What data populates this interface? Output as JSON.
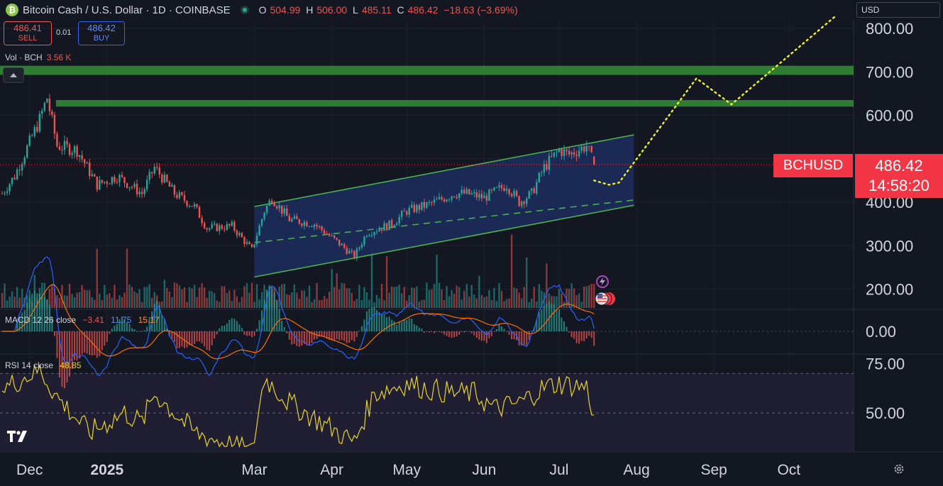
{
  "header": {
    "logo_glyph": "₿",
    "title": "Bitcoin Cash / U.S. Dollar · 1D · COINBASE",
    "ohlc": [
      {
        "key": "O",
        "value": "504.99"
      },
      {
        "key": "H",
        "value": "506.00"
      },
      {
        "key": "L",
        "value": "485.11"
      },
      {
        "key": "C",
        "value": "486.42"
      },
      {
        "key": "",
        "value": "−18.63 (−3.69%)"
      }
    ]
  },
  "trade": {
    "sell_price": "486.41",
    "sell_label": "SELL",
    "spread": "0.01",
    "buy_price": "486.42",
    "buy_label": "BUY"
  },
  "volume": {
    "label": "Vol · BCH",
    "value": "3.56 K"
  },
  "macd": {
    "label": "MACD 12 26 close",
    "v1": "−3.41",
    "v2": "11.75",
    "v3": "15.17"
  },
  "rsi": {
    "label": "RSI 14 close",
    "value": "48.85"
  },
  "currency": "USD",
  "last": {
    "symbol": "BCHUSD",
    "price": "486.42",
    "countdown": "14:58:20"
  },
  "colors": {
    "up": "#26a69a",
    "down": "#ef5350",
    "zone": "#2e7d32",
    "channel": "#4caf50",
    "projection": "#f5f51e",
    "rsi": "#e8d22a",
    "macd": "#2962ff",
    "signal": "#ff6d00"
  },
  "chart_data": {
    "type": "candlestick",
    "x_ticks": [
      "Dec",
      "2025",
      "Mar",
      "Apr",
      "May",
      "Jun",
      "Jul",
      "Aug",
      "Sep",
      "Oct"
    ],
    "price_ticks": [
      "800.00",
      "700.00",
      "600.00",
      "400.00",
      "300.00",
      "200.00"
    ],
    "macd_ticks": [
      "0.00"
    ],
    "rsi_ticks": [
      "75.00",
      "50.00"
    ],
    "resistance_zones": [
      [
        693,
        714
      ],
      [
        620,
        635
      ]
    ],
    "channel": {
      "start": "2025-03-01",
      "end": "2025-07-31",
      "upper": [
        390,
        555
      ],
      "mid": [
        307,
        405
      ],
      "lower": [
        228,
        393
      ]
    },
    "projection": [
      [
        "2025-07-15",
        450
      ],
      [
        "2025-07-21",
        440
      ],
      [
        "2025-07-25",
        445
      ],
      [
        "2025-08-25",
        685
      ],
      [
        "2025-09-08",
        625
      ],
      [
        "2025-10-20",
        830
      ]
    ],
    "price_anchors": [
      [
        "2024-11-20",
        420
      ],
      [
        "2024-11-25",
        460
      ],
      [
        "2024-12-05",
        590
      ],
      [
        "2024-12-08",
        640
      ],
      [
        "2024-12-12",
        530
      ],
      [
        "2024-12-20",
        520
      ],
      [
        "2024-12-28",
        440
      ],
      [
        "2025-01-05",
        460
      ],
      [
        "2025-01-15",
        420
      ],
      [
        "2025-01-20",
        480
      ],
      [
        "2025-01-28",
        420
      ],
      [
        "2025-02-05",
        390
      ],
      [
        "2025-02-10",
        340
      ],
      [
        "2025-02-20",
        345
      ],
      [
        "2025-02-28",
        290
      ],
      [
        "2025-03-05",
        380
      ],
      [
        "2025-03-08",
        410
      ],
      [
        "2025-03-15",
        360
      ],
      [
        "2025-03-25",
        350
      ],
      [
        "2025-04-05",
        300
      ],
      [
        "2025-04-10",
        275
      ],
      [
        "2025-04-15",
        330
      ],
      [
        "2025-04-25",
        350
      ],
      [
        "2025-05-01",
        380
      ],
      [
        "2025-05-10",
        395
      ],
      [
        "2025-05-20",
        420
      ],
      [
        "2025-05-25",
        420
      ],
      [
        "2025-06-01",
        410
      ],
      [
        "2025-06-10",
        440
      ],
      [
        "2025-06-15",
        400
      ],
      [
        "2025-06-20",
        420
      ],
      [
        "2025-06-25",
        480
      ],
      [
        "2025-07-01",
        520
      ],
      [
        "2025-07-05",
        510
      ],
      [
        "2025-07-12",
        530
      ],
      [
        "2025-07-15",
        486
      ]
    ],
    "rsi_anchors": [
      [
        "2024-11-20",
        62
      ],
      [
        "2024-12-05",
        72
      ],
      [
        "2024-12-12",
        58
      ],
      [
        "2024-12-25",
        40
      ],
      [
        "2025-01-08",
        50
      ],
      [
        "2025-01-15",
        45
      ],
      [
        "2025-01-20",
        60
      ],
      [
        "2025-02-05",
        40
      ],
      [
        "2025-02-28",
        30
      ],
      [
        "2025-03-05",
        68
      ],
      [
        "2025-03-15",
        55
      ],
      [
        "2025-04-10",
        35
      ],
      [
        "2025-04-18",
        60
      ],
      [
        "2025-05-01",
        65
      ],
      [
        "2025-05-10",
        62
      ],
      [
        "2025-05-20",
        60
      ],
      [
        "2025-05-28",
        60
      ],
      [
        "2025-06-05",
        52
      ],
      [
        "2025-06-15",
        55
      ],
      [
        "2025-06-25",
        63
      ],
      [
        "2025-07-01",
        65
      ],
      [
        "2025-07-12",
        63
      ],
      [
        "2025-07-15",
        48.85
      ]
    ]
  }
}
